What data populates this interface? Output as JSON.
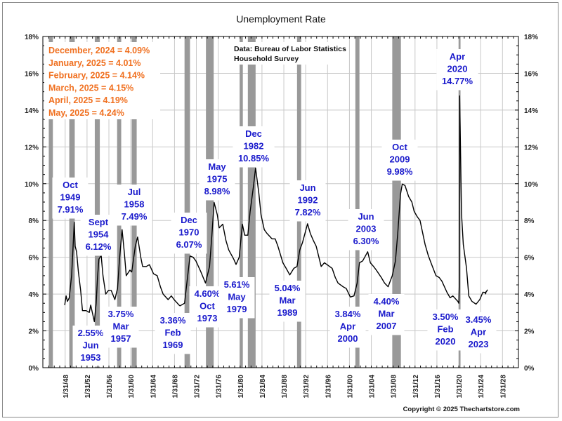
{
  "chart_data": {
    "type": "line",
    "title": "Unemployment Rate",
    "xlabel": "",
    "ylabel": "",
    "ylim": [
      0,
      18
    ],
    "xlim": [
      "1944",
      "2031"
    ],
    "y_ticks": [
      "0%",
      "2%",
      "4%",
      "6%",
      "8%",
      "10%",
      "12%",
      "14%",
      "16%",
      "18%"
    ],
    "x_ticks": [
      "1/31/48",
      "1/31/52",
      "1/31/56",
      "1/31/60",
      "1/31/64",
      "1/31/68",
      "1/31/72",
      "1/31/76",
      "1/31/80",
      "1/31/84",
      "1/31/88",
      "1/31/92",
      "1/31/96",
      "1/31/00",
      "1/31/04",
      "1/31/08",
      "1/31/12",
      "1/31/16",
      "1/31/20",
      "1/31/24",
      "1/31/28"
    ],
    "grid": true,
    "line_color": "#000000",
    "recession_color": "#999999",
    "recessions": [
      [
        "1945-02",
        "1945-10"
      ],
      [
        "1948-11",
        "1949-10"
      ],
      [
        "1953-07",
        "1954-05"
      ],
      [
        "1957-08",
        "1958-04"
      ],
      [
        "1960-04",
        "1961-02"
      ],
      [
        "1969-12",
        "1970-11"
      ],
      [
        "1973-11",
        "1975-03"
      ],
      [
        "1980-01",
        "1980-07"
      ],
      [
        "1981-07",
        "1982-11"
      ],
      [
        "1990-07",
        "1991-03"
      ],
      [
        "2001-03",
        "2001-11"
      ],
      [
        "2007-12",
        "2009-06"
      ],
      [
        "2020-02",
        "2020-04"
      ]
    ],
    "series": [
      {
        "points": [
          [
            "1948-01",
            3.4
          ],
          [
            "1948-04",
            3.9
          ],
          [
            "1948-07",
            3.6
          ],
          [
            "1948-11",
            3.8
          ],
          [
            "1949-04",
            5.0
          ],
          [
            "1949-07",
            6.4
          ],
          [
            "1949-10",
            7.9
          ],
          [
            "1949-12",
            6.6
          ],
          [
            "1950-03",
            6.3
          ],
          [
            "1950-07",
            5.2
          ],
          [
            "1950-12",
            4.2
          ],
          [
            "1951-04",
            3.1
          ],
          [
            "1951-12",
            3.1
          ],
          [
            "1952-07",
            3.0
          ],
          [
            "1952-10",
            3.4
          ],
          [
            "1953-06",
            2.5
          ],
          [
            "1953-10",
            3.5
          ],
          [
            "1954-01",
            4.9
          ],
          [
            "1954-04",
            5.9
          ],
          [
            "1954-09",
            6.1
          ],
          [
            "1955-01",
            5.0
          ],
          [
            "1955-07",
            4.0
          ],
          [
            "1956-01",
            4.2
          ],
          [
            "1956-07",
            4.2
          ],
          [
            "1957-03",
            3.7
          ],
          [
            "1957-09",
            4.3
          ],
          [
            "1958-01",
            5.8
          ],
          [
            "1958-07",
            7.5
          ],
          [
            "1958-12",
            6.2
          ],
          [
            "1959-04",
            5.0
          ],
          [
            "1959-12",
            5.3
          ],
          [
            "1960-04",
            5.2
          ],
          [
            "1960-12",
            6.6
          ],
          [
            "1961-05",
            7.1
          ],
          [
            "1961-12",
            6.0
          ],
          [
            "1962-04",
            5.5
          ],
          [
            "1962-12",
            5.5
          ],
          [
            "1963-07",
            5.6
          ],
          [
            "1964-04",
            5.1
          ],
          [
            "1964-12",
            5.0
          ],
          [
            "1965-07",
            4.4
          ],
          [
            "1966-01",
            4.0
          ],
          [
            "1966-12",
            3.7
          ],
          [
            "1967-07",
            3.9
          ],
          [
            "1968-01",
            3.7
          ],
          [
            "1968-12",
            3.4
          ],
          [
            "1969-02",
            3.36
          ],
          [
            "1969-12",
            3.5
          ],
          [
            "1970-07",
            5.0
          ],
          [
            "1970-12",
            6.07
          ],
          [
            "1971-07",
            6.0
          ],
          [
            "1972-01",
            5.8
          ],
          [
            "1972-12",
            5.2
          ],
          [
            "1973-10",
            4.6
          ],
          [
            "1974-07",
            5.5
          ],
          [
            "1974-12",
            7.2
          ],
          [
            "1975-05",
            8.98
          ],
          [
            "1975-12",
            8.3
          ],
          [
            "1976-04",
            7.6
          ],
          [
            "1976-12",
            7.8
          ],
          [
            "1977-07",
            6.9
          ],
          [
            "1978-01",
            6.4
          ],
          [
            "1978-12",
            5.9
          ],
          [
            "1979-05",
            5.61
          ],
          [
            "1979-12",
            6.0
          ],
          [
            "1980-07",
            7.8
          ],
          [
            "1980-12",
            7.2
          ],
          [
            "1981-07",
            7.2
          ],
          [
            "1981-12",
            8.5
          ],
          [
            "1982-07",
            9.8
          ],
          [
            "1982-12",
            10.85
          ],
          [
            "1983-07",
            9.5
          ],
          [
            "1983-12",
            8.3
          ],
          [
            "1984-07",
            7.5
          ],
          [
            "1985-01",
            7.3
          ],
          [
            "1985-12",
            7.0
          ],
          [
            "1986-07",
            7.0
          ],
          [
            "1987-01",
            6.6
          ],
          [
            "1987-12",
            5.7
          ],
          [
            "1988-07",
            5.4
          ],
          [
            "1989-03",
            5.04
          ],
          [
            "1989-12",
            5.4
          ],
          [
            "1990-07",
            5.5
          ],
          [
            "1991-01",
            6.4
          ],
          [
            "1991-07",
            6.8
          ],
          [
            "1992-06",
            7.82
          ],
          [
            "1992-12",
            7.3
          ],
          [
            "1993-07",
            6.9
          ],
          [
            "1994-01",
            6.6
          ],
          [
            "1994-12",
            5.5
          ],
          [
            "1995-07",
            5.7
          ],
          [
            "1996-01",
            5.6
          ],
          [
            "1996-12",
            5.4
          ],
          [
            "1997-07",
            4.9
          ],
          [
            "1998-01",
            4.6
          ],
          [
            "1998-12",
            4.4
          ],
          [
            "1999-07",
            4.3
          ],
          [
            "2000-04",
            3.84
          ],
          [
            "2000-12",
            3.9
          ],
          [
            "2001-07",
            4.6
          ],
          [
            "2001-12",
            5.7
          ],
          [
            "2002-07",
            5.8
          ],
          [
            "2003-06",
            6.3
          ],
          [
            "2003-12",
            5.7
          ],
          [
            "2004-07",
            5.5
          ],
          [
            "2005-01",
            5.3
          ],
          [
            "2005-12",
            4.9
          ],
          [
            "2006-07",
            4.6
          ],
          [
            "2007-03",
            4.4
          ],
          [
            "2007-12",
            5.0
          ],
          [
            "2008-07",
            5.8
          ],
          [
            "2008-12",
            7.3
          ],
          [
            "2009-06",
            9.4
          ],
          [
            "2009-10",
            9.98
          ],
          [
            "2010-04",
            9.9
          ],
          [
            "2010-12",
            9.3
          ],
          [
            "2011-07",
            9.0
          ],
          [
            "2011-12",
            8.5
          ],
          [
            "2012-07",
            8.2
          ],
          [
            "2013-01",
            8.0
          ],
          [
            "2013-12",
            6.7
          ],
          [
            "2014-07",
            6.1
          ],
          [
            "2015-01",
            5.7
          ],
          [
            "2015-12",
            5.0
          ],
          [
            "2016-07",
            4.9
          ],
          [
            "2017-01",
            4.7
          ],
          [
            "2017-12",
            4.1
          ],
          [
            "2018-07",
            3.8
          ],
          [
            "2019-01",
            3.9
          ],
          [
            "2019-12",
            3.6
          ],
          [
            "2020-02",
            3.5
          ],
          [
            "2020-03",
            4.4
          ],
          [
            "2020-04",
            14.77
          ],
          [
            "2020-05",
            13.2
          ],
          [
            "2020-08",
            8.4
          ],
          [
            "2020-12",
            6.7
          ],
          [
            "2021-07",
            5.4
          ],
          [
            "2021-12",
            3.9
          ],
          [
            "2022-07",
            3.6
          ],
          [
            "2023-04",
            3.45
          ],
          [
            "2023-12",
            3.7
          ],
          [
            "2024-07",
            4.1
          ],
          [
            "2024-12",
            4.09
          ],
          [
            "2025-01",
            4.01
          ],
          [
            "2025-02",
            4.14
          ],
          [
            "2025-03",
            4.15
          ],
          [
            "2025-04",
            4.19
          ],
          [
            "2025-05",
            4.24
          ]
        ]
      }
    ],
    "annotations": [
      {
        "lines": [
          "Oct",
          "1949",
          "7.91%"
        ]
      },
      {
        "lines": [
          "Sept",
          "1954",
          "6.12%"
        ]
      },
      {
        "lines": [
          "Jul",
          "1958",
          "7.49%"
        ]
      },
      {
        "lines": [
          "Dec",
          "1970",
          "6.07%"
        ]
      },
      {
        "lines": [
          "May",
          "1975",
          "8.98%"
        ]
      },
      {
        "lines": [
          "Dec",
          "1982",
          "10.85%"
        ]
      },
      {
        "lines": [
          "2.55%",
          "Jun",
          "1953"
        ]
      },
      {
        "lines": [
          "3.75%",
          "Mar",
          "1957"
        ]
      },
      {
        "lines": [
          "3.36%",
          "Feb",
          "1969"
        ]
      },
      {
        "lines": [
          "4.60%",
          "Oct",
          "1973"
        ]
      },
      {
        "lines": [
          "5.61%",
          "May",
          "1979"
        ]
      },
      {
        "lines": [
          "5.04%",
          "Mar",
          "1989"
        ]
      },
      {
        "lines": [
          "Jun",
          "1992",
          "7.82%"
        ]
      },
      {
        "lines": [
          "3.84%",
          "Apr",
          "2000"
        ]
      },
      {
        "lines": [
          "Jun",
          "2003",
          "6.30%"
        ]
      },
      {
        "lines": [
          "4.40%",
          "Mar",
          "2007"
        ]
      },
      {
        "lines": [
          "Oct",
          "2009",
          "9.98%"
        ]
      },
      {
        "lines": [
          "3.50%",
          "Feb",
          "2020"
        ]
      },
      {
        "lines": [
          "3.45%",
          "Apr",
          "2023"
        ]
      },
      {
        "lines": [
          "Apr",
          "2020",
          "14.77%"
        ]
      }
    ],
    "recent_values": [
      "December, 2024 = 4.09%",
      "January, 2025 = 4.01%",
      "February, 2025 = 4.14%",
      "March, 2025 = 4.15%",
      "April, 2025 = 4.19%",
      "May, 2025 = 4.24%"
    ],
    "recent_color": "#f07020",
    "annotation_color": "#1a1acc",
    "source": [
      "Data:  Bureau of Labor Statistics",
      "Household Survey"
    ],
    "copyright": "Copyright © 2025 Thechartstore.com"
  }
}
